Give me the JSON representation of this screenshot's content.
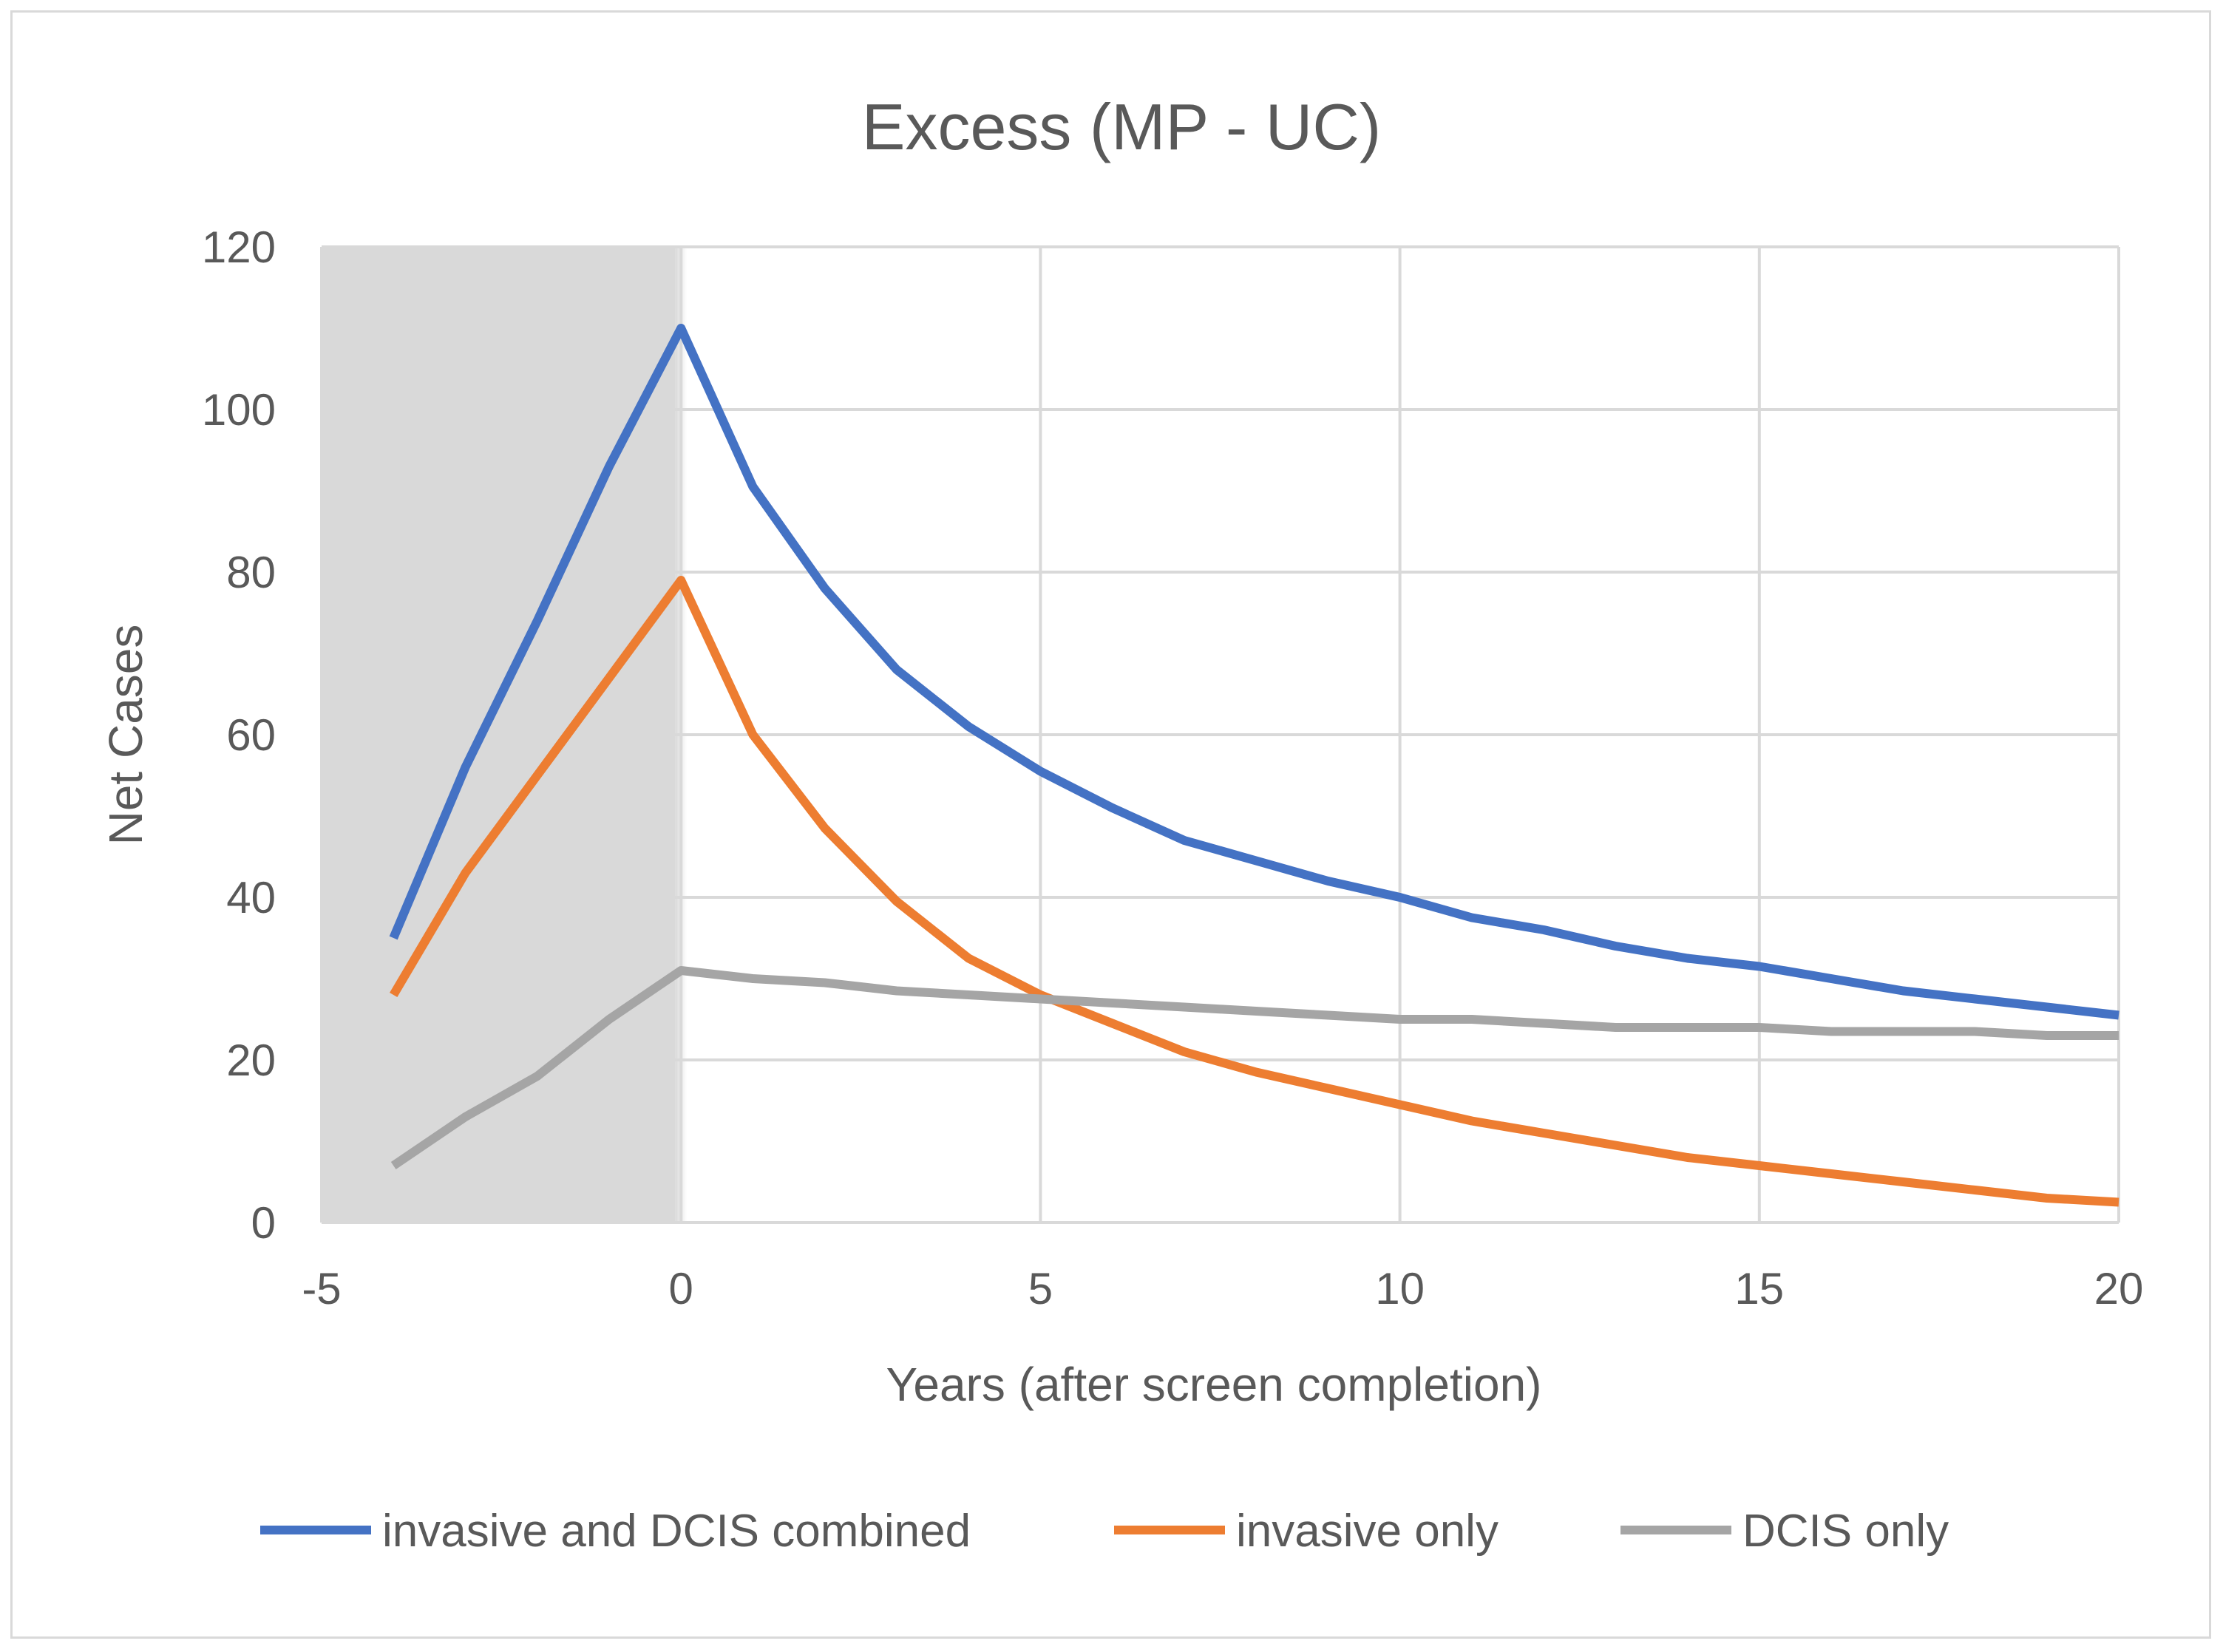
{
  "chart_data": {
    "type": "line",
    "title": "Excess (MP - UC)",
    "xlabel": "Years (after screen completion)",
    "ylabel": "Net Cases",
    "xlim": [
      -5,
      20
    ],
    "ylim": [
      0,
      120
    ],
    "x_ticks": [
      "-5",
      "0",
      "5",
      "10",
      "15",
      "20"
    ],
    "y_ticks": [
      "0",
      "20",
      "40",
      "60",
      "80",
      "100",
      "120"
    ],
    "x_tick_values": [
      -5,
      0,
      5,
      10,
      15,
      20
    ],
    "y_tick_values": [
      0,
      20,
      40,
      60,
      80,
      100,
      120
    ],
    "grid": true,
    "shaded_region": {
      "x_from": -5,
      "x_to": 0,
      "color": "#d9d9d9"
    },
    "legend_position": "bottom",
    "x": [
      -4,
      -3,
      -2,
      -1,
      0,
      1,
      2,
      3,
      4,
      5,
      6,
      7,
      8,
      9,
      10,
      11,
      12,
      13,
      14,
      15,
      16,
      17,
      18,
      19,
      20
    ],
    "series": [
      {
        "name": "invasive and DCIS combined",
        "color": "#4472c4",
        "values": [
          35,
          56,
          74,
          93,
          110,
          90.5,
          78,
          68,
          61,
          55.5,
          51,
          47,
          44.5,
          42,
          40,
          37.5,
          36,
          34,
          32.5,
          31.5,
          30,
          28.5,
          27.5,
          26.5,
          25.5
        ]
      },
      {
        "name": "invasive only",
        "color": "#ed7d31",
        "values": [
          28,
          43,
          55,
          67,
          79,
          60,
          48.5,
          39.5,
          32.5,
          28,
          24.5,
          21,
          18.5,
          16.5,
          14.5,
          12.5,
          11,
          9.5,
          8,
          7,
          6,
          5,
          4,
          3,
          2.5
        ]
      },
      {
        "name": "DCIS only",
        "color": "#a5a5a5",
        "values": [
          7,
          13,
          18,
          25,
          31,
          30,
          29.5,
          28.5,
          28,
          27.5,
          27,
          26.5,
          26,
          25.5,
          25,
          25,
          24.5,
          24,
          24,
          24,
          23.5,
          23.5,
          23.5,
          23,
          23
        ]
      }
    ]
  }
}
